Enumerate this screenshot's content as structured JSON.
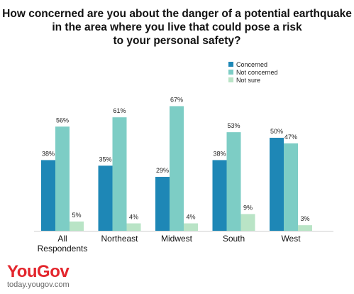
{
  "title_lines": [
    "How concerned are you about the danger of a potential earthquake",
    "in the area where you live that could pose a risk",
    "to your personal safety?"
  ],
  "colors": {
    "Concerned": "#1e87b6",
    "Not concerned": "#7dcdc5",
    "Not sure": "#b9e4c6"
  },
  "chart_data": {
    "type": "bar",
    "title": "How concerned are you about the danger of a potential earthquake in the area where you live that could pose a risk to your personal safety?",
    "categories": [
      "All Respondents",
      "Northeast",
      "Midwest",
      "South",
      "West"
    ],
    "category_lines": [
      [
        "All",
        "Respondents"
      ],
      [
        "Northeast"
      ],
      [
        "Midwest"
      ],
      [
        "South"
      ],
      [
        "West"
      ]
    ],
    "series": [
      {
        "name": "Concerned",
        "values": [
          38,
          35,
          29,
          38,
          50
        ],
        "labels": [
          "38%",
          "35%",
          "29%",
          "38%",
          "50%"
        ]
      },
      {
        "name": "Not concerned",
        "values": [
          56,
          61,
          67,
          53,
          47
        ],
        "labels": [
          "56%",
          "61%",
          "67%",
          "53%",
          "47%"
        ]
      },
      {
        "name": "Not sure",
        "values": [
          5,
          4,
          4,
          9,
          3
        ],
        "labels": [
          "5%",
          "4%",
          "4%",
          "9%",
          "3%"
        ]
      }
    ],
    "ylim": [
      0,
      70
    ],
    "grid": false,
    "legend_position": "top-right",
    "xlabel": "",
    "ylabel": ""
  },
  "branding": {
    "logo": "YouGov",
    "url": "today.yougov.com"
  }
}
